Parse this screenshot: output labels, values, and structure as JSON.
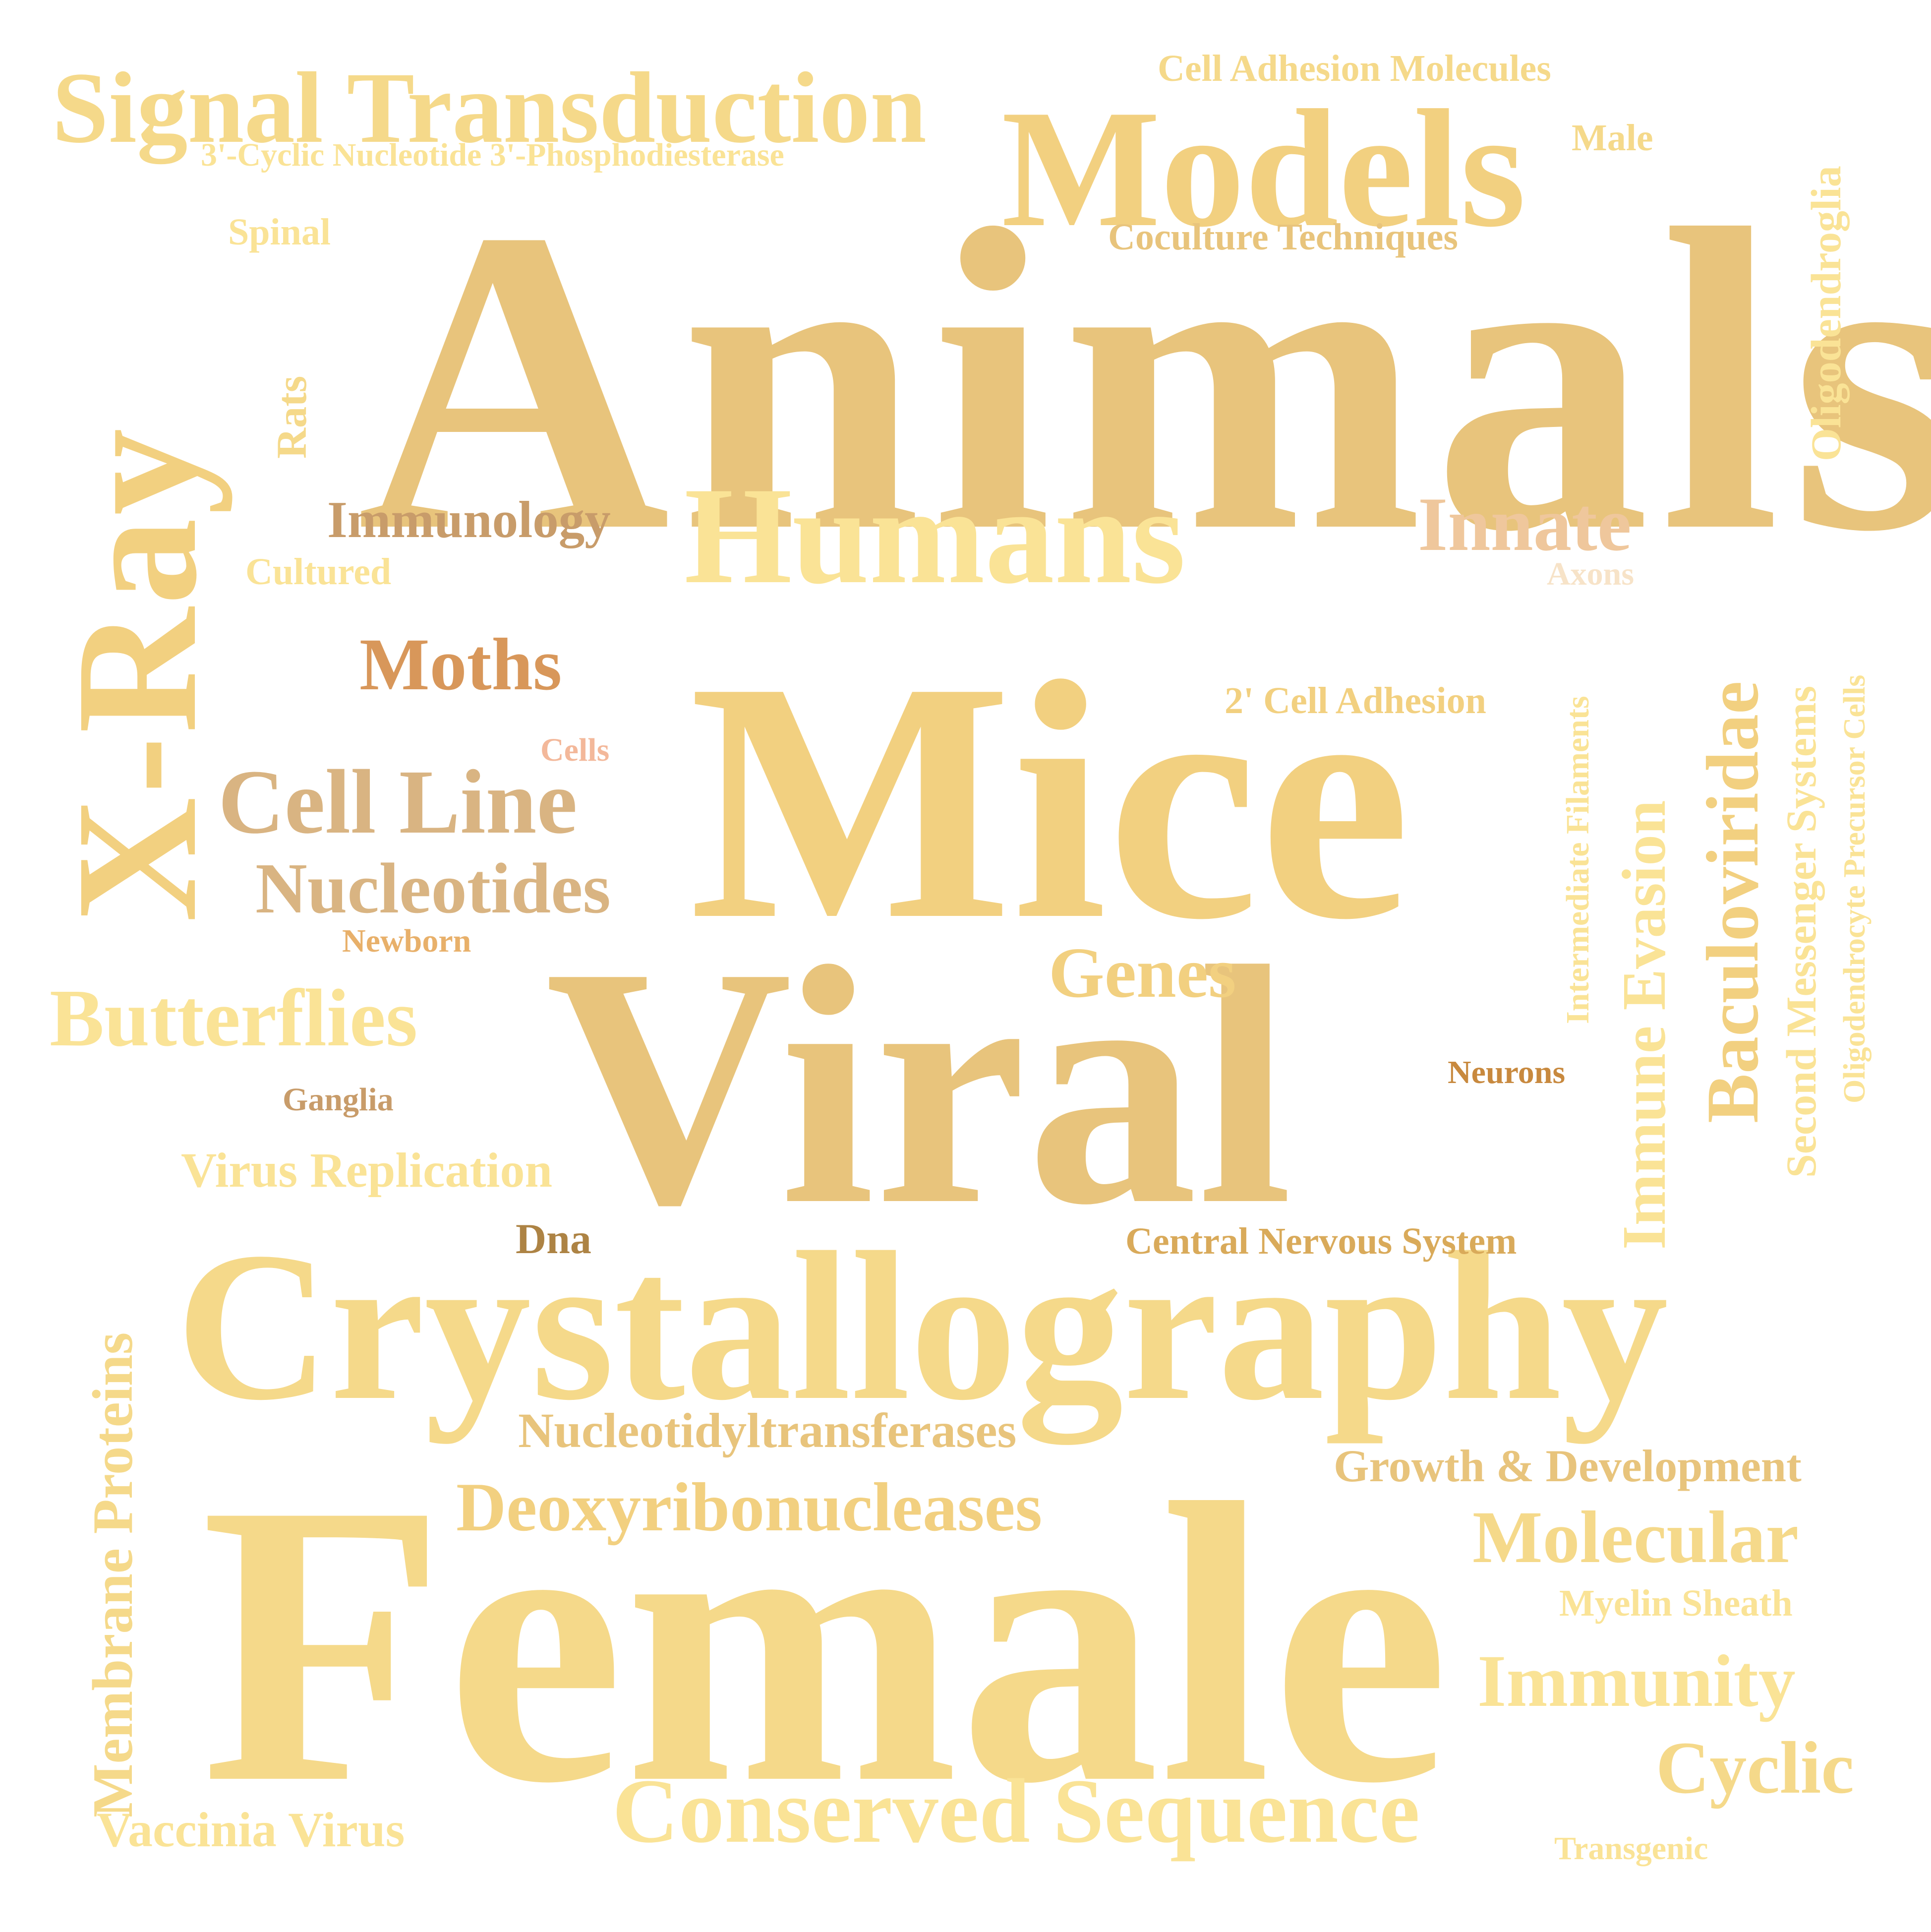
{
  "colors": {
    "background": "#ffffff",
    "tan": "#e8c47c",
    "wheat": "#f2d080",
    "pale_yellow": "#fae396",
    "light_gold": "#f5d98a",
    "peach": "#efc79c",
    "light_brown": "#d9b482",
    "medium_brown": "#c89c6a",
    "dark_brown": "#ad8344",
    "orange_brown": "#c8893e",
    "rust": "#d8975a",
    "salmon": "#f3b89a"
  },
  "words": [
    {
      "id": "animals",
      "text": "Animals",
      "color": "#e8c47c",
      "orientation": "horizontal"
    },
    {
      "id": "mice",
      "text": "Mice",
      "color": "#f2d080",
      "orientation": "horizontal"
    },
    {
      "id": "viral",
      "text": "Viral",
      "color": "#e8c47c",
      "orientation": "horizontal"
    },
    {
      "id": "female",
      "text": "Female",
      "color": "#f5d98a",
      "orientation": "horizontal"
    },
    {
      "id": "crystallography",
      "text": "Crystallography",
      "color": "#f5d98a",
      "orientation": "horizontal"
    },
    {
      "id": "models",
      "text": "Models",
      "color": "#f2d080",
      "orientation": "horizontal"
    },
    {
      "id": "humans",
      "text": "Humans",
      "color": "#fae396",
      "orientation": "horizontal"
    },
    {
      "id": "signal_transduction",
      "text": "Signal Transduction",
      "color": "#f5d98a",
      "orientation": "horizontal"
    },
    {
      "id": "x_ray",
      "text": "X-Ray",
      "color": "#f2d080",
      "orientation": "vertical"
    },
    {
      "id": "innate",
      "text": "Innate",
      "color": "#efc79c",
      "orientation": "horizontal"
    },
    {
      "id": "immunology",
      "text": "Immunology",
      "color": "#c89c6a",
      "orientation": "horizontal"
    },
    {
      "id": "moths",
      "text": "Moths",
      "color": "#d8975a",
      "orientation": "horizontal"
    },
    {
      "id": "cell_line",
      "text": "Cell Line",
      "color": "#d9b482",
      "orientation": "horizontal"
    },
    {
      "id": "nucleotides",
      "text": "Nucleotides",
      "color": "#d9b482",
      "orientation": "horizontal"
    },
    {
      "id": "butterflies",
      "text": "Butterflies",
      "color": "#fae396",
      "orientation": "horizontal"
    },
    {
      "id": "genes",
      "text": "Genes",
      "color": "#f2d080",
      "orientation": "horizontal"
    },
    {
      "id": "virus_replication",
      "text": "Virus Replication",
      "color": "#fae396",
      "orientation": "horizontal"
    },
    {
      "id": "nucleotidyltransferases",
      "text": "Nucleotidyltransferases",
      "color": "#e8c47c",
      "orientation": "horizontal"
    },
    {
      "id": "deoxyribonucleases",
      "text": "Deoxyribonucleases",
      "color": "#f2d080",
      "orientation": "horizontal"
    },
    {
      "id": "conserved_sequence",
      "text": "Conserved Sequence",
      "color": "#fae396",
      "orientation": "horizontal"
    },
    {
      "id": "molecular",
      "text": "Molecular",
      "color": "#f5d98a",
      "orientation": "horizontal"
    },
    {
      "id": "immunity",
      "text": "Immunity",
      "color": "#fae396",
      "orientation": "horizontal"
    },
    {
      "id": "cyclic",
      "text": "Cyclic",
      "color": "#f5d98a",
      "orientation": "horizontal"
    },
    {
      "id": "growth_development",
      "text": "Growth & Development",
      "color": "#e8c47c",
      "orientation": "horizontal"
    },
    {
      "id": "myelin_sheath",
      "text": "Myelin Sheath",
      "color": "#fae396",
      "orientation": "horizontal"
    },
    {
      "id": "vaccinia_virus",
      "text": "Vaccinia Virus",
      "color": "#fae396",
      "orientation": "horizontal"
    },
    {
      "id": "central_nervous_system",
      "text": "Central Nervous System",
      "color": "#d9aa5a",
      "orientation": "horizontal"
    },
    {
      "id": "cell_adhesion_molecules",
      "text": "Cell Adhesion Molecules",
      "color": "#f5d98a",
      "orientation": "horizontal"
    },
    {
      "id": "male",
      "text": "Male",
      "color": "#f5d98a",
      "orientation": "horizontal"
    },
    {
      "id": "cyclic_nucleotide_pde",
      "text": "3'-Cyclic Nucleotide 3'-Phosphodiesterase",
      "color": "#fae396",
      "orientation": "horizontal"
    },
    {
      "id": "spinal",
      "text": "Spinal",
      "color": "#fae396",
      "orientation": "horizontal"
    },
    {
      "id": "coculture_techniques",
      "text": "Coculture Techniques",
      "color": "#e8c47c",
      "orientation": "horizontal"
    },
    {
      "id": "cultured",
      "text": "Cultured",
      "color": "#fae396",
      "orientation": "horizontal"
    },
    {
      "id": "axons",
      "text": "Axons",
      "color": "#f7e3c8",
      "orientation": "horizontal"
    },
    {
      "id": "cell_adhesion_2",
      "text": "2' Cell Adhesion",
      "color": "#f2d080",
      "orientation": "horizontal"
    },
    {
      "id": "cells",
      "text": "Cells",
      "color": "#f3b89a",
      "orientation": "horizontal"
    },
    {
      "id": "newborn",
      "text": "Newborn",
      "color": "#e8b06a",
      "orientation": "horizontal"
    },
    {
      "id": "neurons",
      "text": "Neurons",
      "color": "#c8893e",
      "orientation": "horizontal"
    },
    {
      "id": "ganglia",
      "text": "Ganglia",
      "color": "#c89c6a",
      "orientation": "horizontal"
    },
    {
      "id": "dna",
      "text": "Dna",
      "color": "#ad8344",
      "orientation": "horizontal"
    },
    {
      "id": "transgenic",
      "text": "Transgenic",
      "color": "#fae396",
      "orientation": "horizontal"
    },
    {
      "id": "rats",
      "text": "Rats",
      "color": "#f5d98a",
      "orientation": "vertical"
    },
    {
      "id": "oligodendroglia",
      "text": "Oligodendroglia",
      "color": "#fae396",
      "orientation": "vertical"
    },
    {
      "id": "membrane_proteins",
      "text": "Membrane Proteins",
      "color": "#f5d98a",
      "orientation": "vertical"
    },
    {
      "id": "immune_evasion",
      "text": "Immune Evasion",
      "color": "#fae396",
      "orientation": "vertical"
    },
    {
      "id": "baculoviridae",
      "text": "Baculoviridae",
      "color": "#f2d080",
      "orientation": "vertical"
    },
    {
      "id": "second_messenger_systems",
      "text": "Second Messenger Systems",
      "color": "#fae396",
      "orientation": "vertical"
    },
    {
      "id": "oligodendrocyte_precursor_cells",
      "text": "Oligodendrocyte Precursor Cells",
      "color": "#fae396",
      "orientation": "vertical"
    },
    {
      "id": "intermediate_filaments",
      "text": "Intermediate Filaments",
      "color": "#fae396",
      "orientation": "vertical"
    }
  ]
}
